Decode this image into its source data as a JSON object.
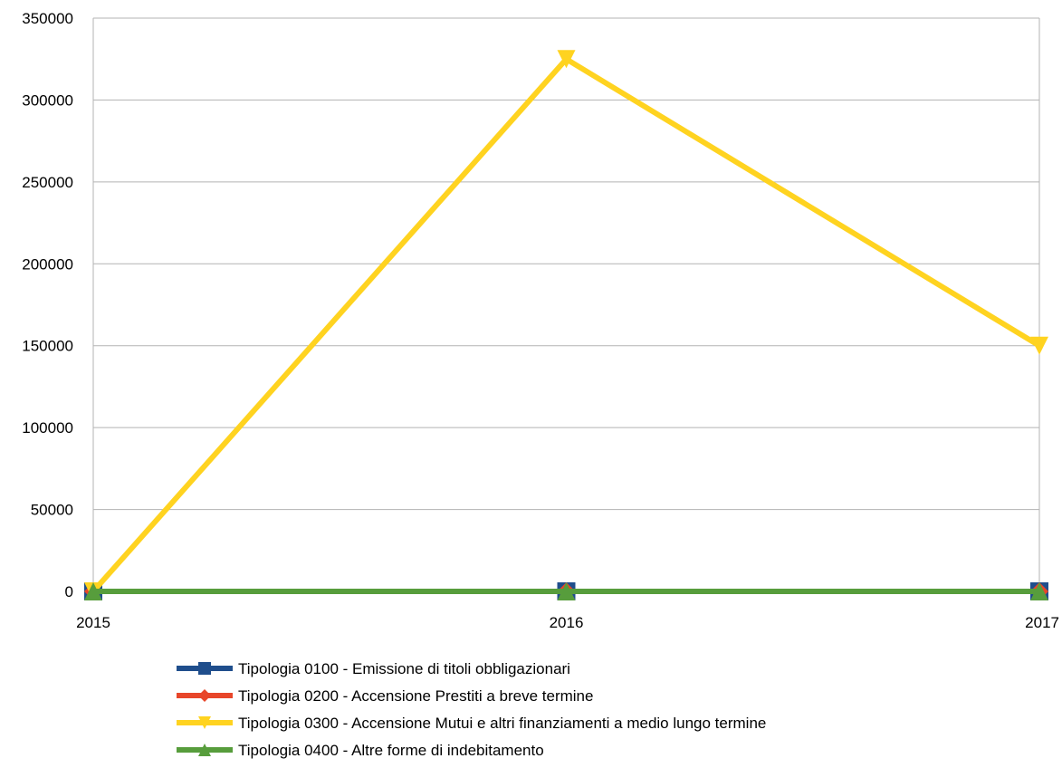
{
  "chart_data": {
    "type": "line",
    "x": [
      "2015",
      "2016",
      "2017"
    ],
    "ylim": [
      0,
      350000
    ],
    "yticks": [
      0,
      50000,
      100000,
      150000,
      200000,
      250000,
      300000,
      350000
    ],
    "ytick_labels": [
      "0",
      "50000",
      "100000",
      "150000",
      "200000",
      "250000",
      "300000",
      "350000"
    ],
    "grid": "horizontal",
    "legend_position": "bottom",
    "series": [
      {
        "name": "Tipologia 0100 - Emissione di titoli obbligazionari",
        "values": [
          0,
          0,
          0
        ],
        "color": "#1f4e8c",
        "marker": "square"
      },
      {
        "name": "Tipologia 0200 - Accensione Prestiti a breve termine",
        "values": [
          0,
          0,
          0
        ],
        "color": "#e8462a",
        "marker": "diamond"
      },
      {
        "name": "Tipologia 0300 - Accensione Mutui e altri finanziamenti a medio lungo termine",
        "values": [
          0,
          325000,
          150000
        ],
        "color": "#ffd320",
        "marker": "triangle-down"
      },
      {
        "name": "Tipologia 0400 - Altre forme di indebitamento",
        "values": [
          0,
          0,
          0
        ],
        "color": "#579d3c",
        "marker": "triangle-up"
      }
    ]
  }
}
